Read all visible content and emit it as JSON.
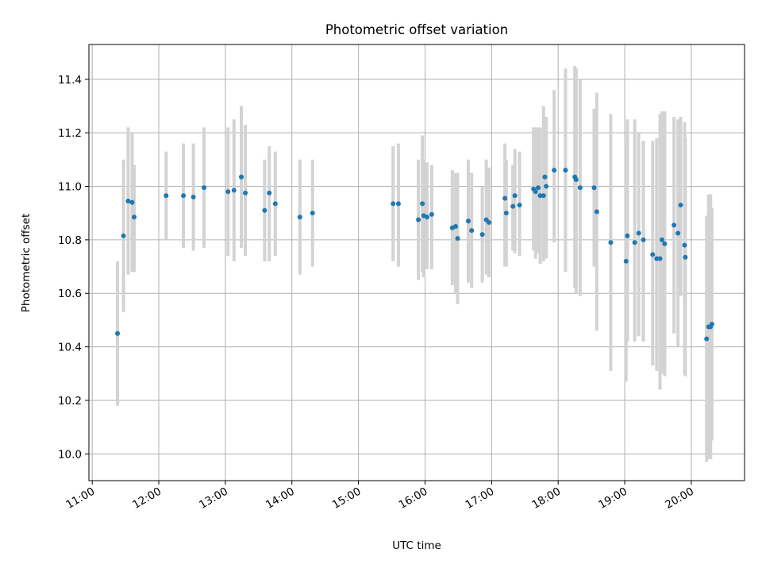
{
  "chart_data": {
    "type": "scatter",
    "title": "Photometric offset variation",
    "xlabel": "UTC time",
    "ylabel": "Photometric offset",
    "x_unit": "hours UTC",
    "xlim": [
      10.95,
      20.8
    ],
    "ylim": [
      9.9,
      11.53
    ],
    "x_ticks": [
      11,
      12,
      13,
      14,
      15,
      16,
      17,
      18,
      19,
      20
    ],
    "x_tick_labels": [
      "11:00",
      "12:00",
      "13:00",
      "14:00",
      "15:00",
      "16:00",
      "17:00",
      "18:00",
      "19:00",
      "20:00"
    ],
    "y_ticks": [
      10.0,
      10.2,
      10.4,
      10.6,
      10.8,
      11.0,
      11.2,
      11.4
    ],
    "y_tick_labels": [
      "10.0",
      "10.2",
      "10.4",
      "10.6",
      "10.8",
      "11.0",
      "11.2",
      "11.4"
    ],
    "grid": true,
    "colors": {
      "point": "#1f77b4",
      "errorbar": "#d3d3d3",
      "grid": "#b0b0b0"
    },
    "series": [
      {
        "x": [
          11.38,
          11.47,
          11.54,
          11.6,
          11.63,
          12.11,
          12.37,
          12.52,
          12.68,
          13.04,
          13.13,
          13.24,
          13.3,
          13.59,
          13.66,
          13.75,
          14.12,
          14.31,
          15.52,
          15.6,
          15.9,
          15.96,
          15.98,
          16.03,
          16.1,
          16.41,
          16.46,
          16.49,
          16.65,
          16.7,
          16.86,
          16.92,
          16.96,
          17.2,
          17.22,
          17.32,
          17.35,
          17.42,
          17.63,
          17.66,
          17.7,
          17.73,
          17.78,
          17.8,
          17.82,
          17.94,
          18.11,
          18.25,
          18.27,
          18.33,
          18.54,
          18.58,
          18.79,
          19.02,
          19.04,
          19.15,
          19.21,
          19.28,
          19.42,
          19.48,
          19.53,
          19.56,
          19.6,
          19.74,
          19.8,
          19.84,
          19.9,
          19.91,
          20.23,
          20.26,
          20.29,
          20.31
        ],
        "y": [
          10.45,
          10.815,
          10.945,
          10.94,
          10.885,
          10.965,
          10.965,
          10.96,
          10.995,
          10.98,
          10.985,
          11.035,
          10.975,
          10.91,
          10.975,
          10.935,
          10.885,
          10.9,
          10.935,
          10.935,
          10.875,
          10.935,
          10.89,
          10.885,
          10.895,
          10.845,
          10.85,
          10.805,
          10.87,
          10.835,
          10.82,
          10.875,
          10.865,
          10.955,
          10.9,
          10.925,
          10.965,
          10.93,
          10.99,
          10.98,
          10.995,
          10.965,
          10.965,
          11.035,
          11.0,
          11.06,
          11.06,
          11.035,
          11.025,
          10.995,
          10.995,
          10.905,
          10.79,
          10.72,
          10.815,
          10.79,
          10.825,
          10.8,
          10.745,
          10.73,
          10.73,
          10.8,
          10.785,
          10.855,
          10.825,
          10.93,
          10.78,
          10.735,
          10.43,
          10.475,
          10.475,
          10.485
        ],
        "err_low": [
          10.18,
          10.53,
          10.67,
          10.68,
          10.68,
          10.8,
          10.77,
          10.76,
          10.77,
          10.74,
          10.72,
          10.77,
          10.74,
          10.72,
          10.72,
          10.74,
          10.67,
          10.7,
          10.72,
          10.7,
          10.65,
          10.68,
          10.66,
          10.69,
          10.69,
          10.63,
          10.6,
          10.56,
          10.64,
          10.62,
          10.64,
          10.67,
          10.66,
          10.7,
          10.7,
          10.76,
          10.75,
          10.74,
          10.76,
          10.73,
          10.75,
          10.71,
          10.72,
          10.78,
          10.73,
          10.79,
          10.68,
          10.62,
          10.6,
          10.59,
          10.7,
          10.46,
          10.31,
          10.27,
          10.42,
          10.42,
          10.44,
          10.42,
          10.33,
          10.31,
          10.24,
          10.3,
          10.29,
          10.45,
          10.4,
          10.59,
          10.3,
          10.29,
          9.97,
          9.98,
          9.98,
          10.05
        ],
        "err_high": [
          10.72,
          11.1,
          11.22,
          11.2,
          11.08,
          11.13,
          11.16,
          11.16,
          11.22,
          11.22,
          11.25,
          11.3,
          11.23,
          11.1,
          11.15,
          11.13,
          11.1,
          11.1,
          11.15,
          11.16,
          11.1,
          11.19,
          11.1,
          11.09,
          11.08,
          11.06,
          11.05,
          11.05,
          11.1,
          11.05,
          11.0,
          11.1,
          11.07,
          11.16,
          11.1,
          11.08,
          11.14,
          11.13,
          11.22,
          11.22,
          11.22,
          11.22,
          11.3,
          11.23,
          11.26,
          11.36,
          11.44,
          11.45,
          11.44,
          11.4,
          11.29,
          11.35,
          11.27,
          11.17,
          11.25,
          11.25,
          11.2,
          11.17,
          11.17,
          11.18,
          11.27,
          11.28,
          11.28,
          11.26,
          11.25,
          11.26,
          11.24,
          11.18,
          10.89,
          10.97,
          10.97,
          10.92
        ]
      }
    ]
  }
}
